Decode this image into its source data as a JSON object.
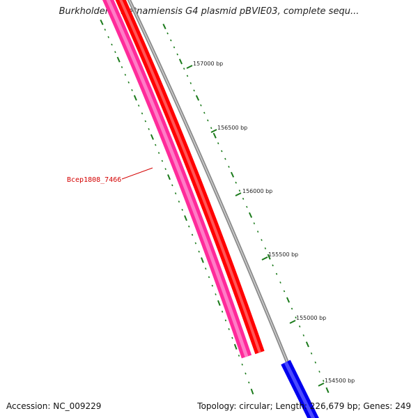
{
  "title": "Burkholderia vietnamiensis G4 plasmid pBVIE03, complete sequ...",
  "footer": {
    "accession": "Accession: NC_009229",
    "summary": "Topology: circular; Length: 226,679 bp; Genes: 249"
  },
  "colors": {
    "tick": "#1a7a1a",
    "backbone": "#8a8a8a",
    "gene_pink": "#ff2a9a",
    "gene_red": "#ff0000",
    "gene_blue": "#0000ee",
    "label_red": "#d40000"
  },
  "scale_ticks": [
    {
      "label": "157000 bp",
      "bp": 157000
    },
    {
      "label": "156500 bp",
      "bp": 156500
    },
    {
      "label": "156000 bp",
      "bp": 156000
    },
    {
      "label": "155500 bp",
      "bp": 155500
    },
    {
      "label": "155000 bp",
      "bp": 155000
    },
    {
      "label": "154500 bp",
      "bp": 154500
    }
  ],
  "genes": [
    {
      "name": "Bcep1808_7466",
      "color": "pink",
      "track": "outer",
      "labeled": true
    },
    {
      "name": "",
      "color": "red",
      "track": "outer",
      "labeled": false
    },
    {
      "name": "",
      "color": "blue",
      "track": "inner",
      "labeled": false
    }
  ]
}
